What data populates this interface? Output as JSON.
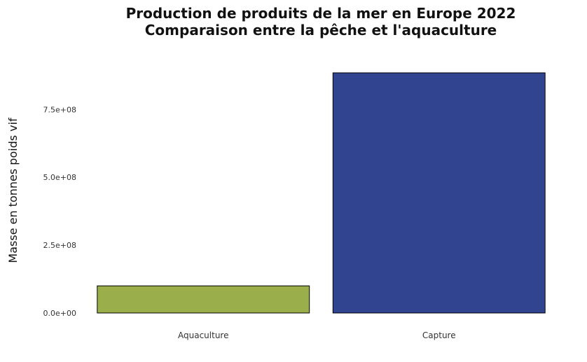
{
  "chart_data": {
    "type": "bar",
    "title": "Production de produits de la mer en Europe 2022",
    "subtitle": "Comparaison entre la pêche et l'aquaculture",
    "xlabel": "",
    "ylabel": "Masse en tonnes poids vif",
    "categories": [
      "Aquaculture",
      "Capture"
    ],
    "values": [
      100000000,
      885000000
    ],
    "colors": [
      "#9aae4c",
      "#31448f"
    ],
    "ylim": [
      0,
      885000000
    ],
    "yticks": [
      {
        "value": 0,
        "label": "0.0e+00"
      },
      {
        "value": 250000000,
        "label": "2.5e+08"
      },
      {
        "value": 500000000,
        "label": "5.0e+08"
      },
      {
        "value": 750000000,
        "label": "7.5e+08"
      }
    ],
    "grid": false,
    "legend": "none"
  }
}
